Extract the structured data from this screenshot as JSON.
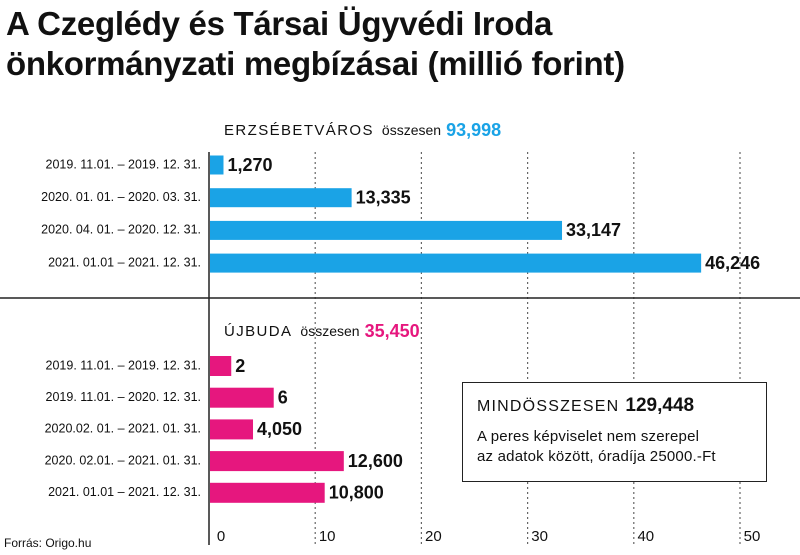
{
  "title": {
    "line1": "A Czeglédy és Társai Ügyvédi Iroda",
    "line2": "önkormányzati megbízásai (millió forint)"
  },
  "source": "Forrás: Origo.hu",
  "summary": {
    "label": "MINDÖSSZESEN",
    "value": "129,448",
    "note_line1": "A peres képviselet nem szerepel",
    "note_line2": "az adatok között, óradíja 25000.-Ft"
  },
  "chart_data": {
    "type": "bar",
    "orientation": "horizontal",
    "unit": "millió forint",
    "xlim": [
      0,
      50
    ],
    "xticks": [
      0,
      10,
      20,
      30,
      40,
      50
    ],
    "grid": true,
    "panels": [
      {
        "name": "ERZSÉBETVÁROS",
        "total_label": "összesen",
        "total": "93,998",
        "color": "#1aa3e6",
        "categories": [
          "2019. 11.01. – 2019. 12. 31.",
          "2020. 01. 01. – 2020. 03. 31.",
          "2020. 04. 01. – 2020. 12. 31.",
          "2021. 01.01 – 2021. 12. 31."
        ],
        "values": [
          1.27,
          13.335,
          33.147,
          46.246
        ],
        "value_labels": [
          "1,270",
          "13,335",
          "33,147",
          "46,246"
        ]
      },
      {
        "name": "ÚJBUDA",
        "total_label": "összesen",
        "total": "35,450",
        "color": "#e6177e",
        "categories": [
          "2019. 11.01. – 2019. 12. 31.",
          "2019. 11.01. – 2020. 12. 31.",
          "2020.02. 01. – 2021. 01. 31.",
          "2020. 02.01. – 2021. 01. 31.",
          "2021. 01.01 – 2021. 12. 31."
        ],
        "values": [
          2,
          6,
          4.05,
          12.6,
          10.8
        ],
        "value_labels": [
          "2",
          "6",
          "4,050",
          "12,600",
          "10,800"
        ]
      }
    ]
  }
}
